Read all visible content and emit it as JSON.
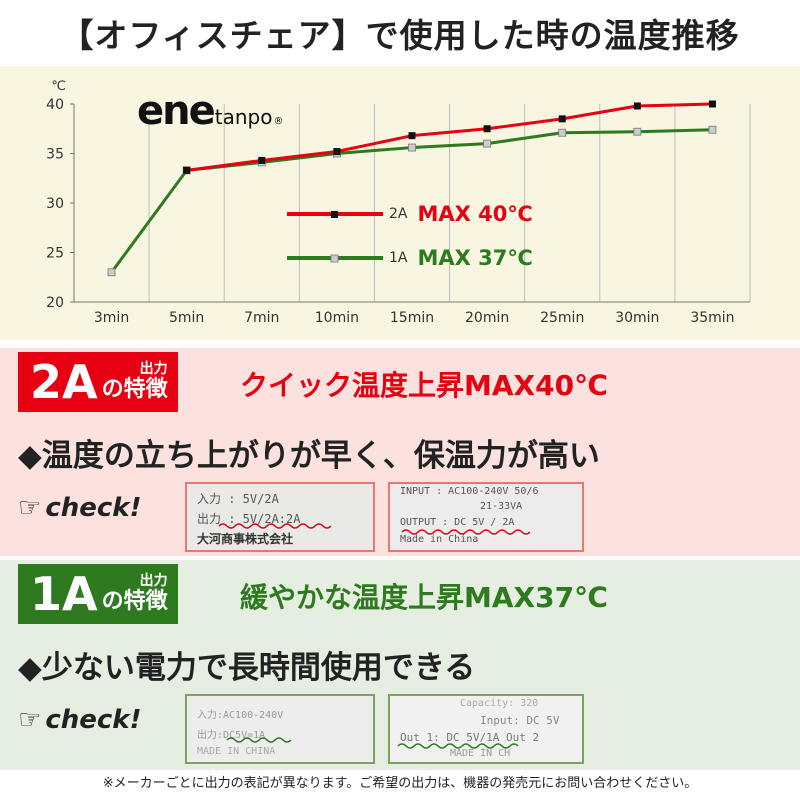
{
  "page_title": "【オフィスチェア】で使用した時の温度推移",
  "logo": {
    "main": "ene",
    "sub": "tanpo",
    "mark": "®"
  },
  "chart_data": {
    "type": "line",
    "title": "",
    "xlabel": "",
    "ylabel": "℃",
    "categories": [
      "3min",
      "5min",
      "7min",
      "10min",
      "15min",
      "20min",
      "25min",
      "30min",
      "35min"
    ],
    "ylim": [
      20,
      40
    ],
    "yticks": [
      20,
      25,
      30,
      35,
      40
    ],
    "grid": "vertical",
    "legend": "center",
    "series": [
      {
        "name": "2A",
        "color": "#e60012",
        "marker": "#111111",
        "max_label": "MAX 40℃",
        "values": [
          null,
          33.3,
          34.3,
          35.2,
          36.8,
          37.5,
          38.5,
          39.8,
          40.0
        ]
      },
      {
        "name": "1A",
        "color": "#2d7a1f",
        "marker": "#cccccc",
        "max_label": "MAX 37℃",
        "values": [
          23.0,
          33.3,
          34.1,
          35.0,
          35.6,
          36.0,
          37.1,
          37.2,
          37.4
        ]
      }
    ]
  },
  "section_2a": {
    "badge_big": "2A",
    "badge_small_top": "出力",
    "badge_small_bottom": "の特徴",
    "badge_color": "#e60012",
    "headline": "クイック温度上昇MAX40℃",
    "headline_color": "#e60012",
    "feature": "◆温度の立ち上がりが早く、保温力が高い",
    "check_label": "check!",
    "photo1": {
      "l1": "入力 : 5V/2A",
      "l2": "出力 : 5V/2A:2A",
      "l3": "大河商事株式会社"
    },
    "photo2": {
      "l1": "INPUT : AC100-240V 50/6",
      "l2": "21-33VA",
      "l3": "OUTPUT : DC 5V / 2A",
      "l4": "Made in China"
    }
  },
  "section_1a": {
    "badge_big": "1A",
    "badge_small_top": "出力",
    "badge_small_bottom": "の特徴",
    "badge_color": "#2d7a1f",
    "headline": "緩やかな温度上昇MAX37℃",
    "headline_color": "#2d7a1f",
    "feature": "◆少ない電力で長時間使用できる",
    "check_label": "check!",
    "photo1": {
      "l1": "入力:AC100-240V",
      "l2": "出力:DC5V=1A",
      "l3": "MADE IN CHINA"
    },
    "photo2": {
      "l1": "Capacity: 320",
      "l2": "Input: DC 5V",
      "l3": "Out 1: DC 5V/1A  Out 2",
      "l4": "MADE IN CH"
    }
  },
  "footer": "※メーカーごとに出力の表記が異なります。ご希望の出力は、機器の発売元にお問い合わせください。"
}
